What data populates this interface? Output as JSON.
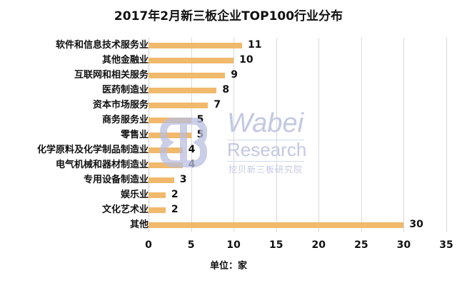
{
  "chart_data": {
    "type": "bar",
    "orientation": "horizontal",
    "title": "2017年2月新三板企业TOP100行业分布",
    "xlabel": "单位：家",
    "ylabel": "",
    "categories": [
      "软件和信息技术服务业",
      "其他金融业",
      "互联网和相关服务",
      "医药制造业",
      "资本市场服务",
      "商务服务业",
      "零售业",
      "化学原料及化学制品制造业",
      "电气机械和器材制造业",
      "专用设备制造业",
      "娱乐业",
      "文化艺术业",
      "其他"
    ],
    "values": [
      11,
      10,
      9,
      8,
      7,
      5,
      5,
      4,
      4,
      3,
      2,
      2,
      30
    ],
    "xlim": [
      0,
      35
    ],
    "xticks": [
      "0",
      "5",
      "10",
      "15",
      "20",
      "25",
      "30",
      "35"
    ],
    "grid": true,
    "legend": null,
    "bar_color": "#f0b96b",
    "data_labels": true
  },
  "watermark": {
    "brand": "Wabei",
    "sub": "Research",
    "cn": "挖贝新三板研究院",
    "color": "#c3c8e2"
  }
}
